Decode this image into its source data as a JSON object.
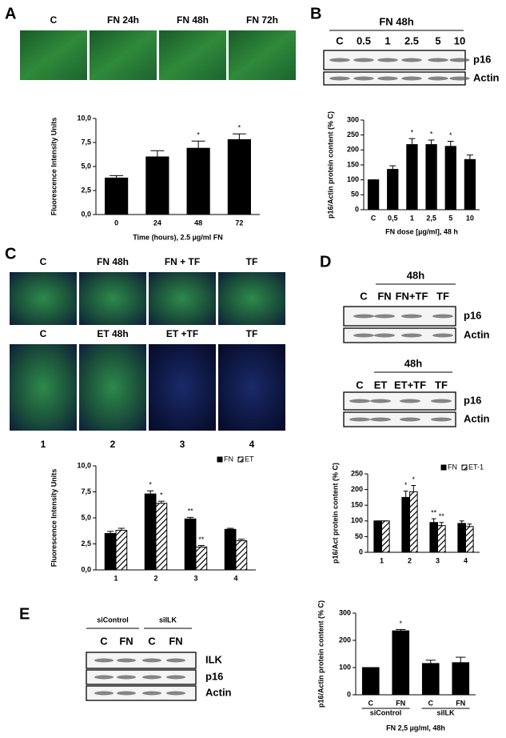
{
  "panel_labels": [
    "A",
    "B",
    "C",
    "D",
    "E"
  ],
  "images_a": [
    "C",
    "FN 24h",
    "FN 48h",
    "FN 72h"
  ],
  "blot_b": {
    "title": "FN 48h",
    "lanes": [
      "C",
      "0.5",
      "1",
      "2.5",
      "5",
      "10"
    ],
    "bands": [
      "p16",
      "Actin"
    ]
  },
  "images_c_top": [
    "C",
    "FN  48h",
    "FN + TF",
    "TF"
  ],
  "images_c_bottom": [
    "C",
    "ET 48h",
    "ET +TF",
    "TF"
  ],
  "images_c_numbers": [
    "1",
    "2",
    "3",
    "4"
  ],
  "blot_d_top": {
    "title": "48h",
    "lanes": [
      "C",
      "FN",
      "FN+TF",
      "TF"
    ],
    "bands": [
      "p16",
      "Actin"
    ]
  },
  "blot_d_bottom": {
    "title": "48h",
    "lanes": [
      "C",
      "ET",
      "ET+TF",
      "TF"
    ],
    "bands": [
      "p16",
      "Actin"
    ]
  },
  "blot_e": {
    "groups": [
      "siControl",
      "siILK"
    ],
    "lanes": [
      "C",
      "FN",
      "C",
      "FN"
    ],
    "bands": [
      "ILK",
      "p16",
      "Actin"
    ]
  },
  "chart_data": [
    {
      "type": "bar",
      "y_label": "Fluorescence Intensity Units",
      "x_label": "Time (hours), 2.5 µg/ml FN",
      "categories": [
        "0",
        "24",
        "48",
        "72"
      ],
      "values": [
        3.8,
        6.0,
        6.9,
        7.8
      ],
      "errors": [
        0.25,
        0.65,
        0.75,
        0.6
      ],
      "markers": [
        null,
        null,
        "*",
        "*"
      ],
      "color": "#000000",
      "ylim": [
        0,
        10
      ],
      "yticks": [
        {
          "value": 0,
          "label": "0,0"
        },
        {
          "value": 2.5,
          "label": "2,5"
        },
        {
          "value": 5,
          "label": "5,0"
        },
        {
          "value": 7.5,
          "label": "7,5"
        },
        {
          "value": 10,
          "label": "10,0"
        }
      ]
    },
    {
      "type": "bar",
      "y_label": "p16/Actin protein content (% C)",
      "x_label": "FN dose [µg/ml], 48 h",
      "categories": [
        "C",
        "0,5",
        "1",
        "2,5",
        "5",
        "10"
      ],
      "values": [
        100,
        135,
        218,
        218,
        212,
        168
      ],
      "errors": [
        0,
        12,
        20,
        15,
        17,
        15
      ],
      "markers": [
        null,
        null,
        "*",
        "*",
        "*",
        null
      ],
      "color": "#000000",
      "ylim": [
        0,
        300
      ],
      "yticks": [
        0,
        50,
        100,
        150,
        200,
        250,
        300
      ]
    },
    {
      "type": "bar",
      "y_label": "Fluorescence Intensity Units",
      "categories": [
        "1",
        "2",
        "3",
        "4"
      ],
      "series": [
        {
          "name": "FN",
          "color": "#000000",
          "hatch": false,
          "values": [
            3.5,
            7.3,
            4.9,
            3.9
          ],
          "errors": [
            0.2,
            0.3,
            0.15,
            0.1
          ],
          "markers": [
            null,
            "*",
            "**",
            null
          ]
        },
        {
          "name": "ET",
          "color": "#000000",
          "hatch": true,
          "values": [
            3.8,
            6.4,
            2.2,
            2.8
          ],
          "errors": [
            0.2,
            0.2,
            0.15,
            0.15
          ],
          "markers": [
            null,
            "*",
            "**",
            null
          ]
        }
      ],
      "ylim": [
        0,
        10
      ],
      "yticks": [
        {
          "value": 0,
          "label": "0,0"
        },
        {
          "value": 2.5,
          "label": "2,5"
        },
        {
          "value": 5,
          "label": "5,0"
        },
        {
          "value": 7.5,
          "label": "7,5"
        },
        {
          "value": 10,
          "label": "10,0"
        }
      ]
    },
    {
      "type": "bar",
      "y_label": "p16/Act protein content (% C)",
      "categories": [
        "1",
        "2",
        "3",
        "4"
      ],
      "series": [
        {
          "name": "FN",
          "color": "#000000",
          "hatch": false,
          "values": [
            100,
            175,
            95,
            92
          ],
          "errors": [
            0,
            20,
            12,
            8
          ],
          "markers": [
            null,
            "*",
            "**",
            null
          ]
        },
        {
          "name": "ET-1",
          "color": "#000000",
          "hatch": true,
          "values": [
            100,
            193,
            85,
            82
          ],
          "errors": [
            0,
            20,
            10,
            8
          ],
          "markers": [
            null,
            "*",
            "**",
            null
          ]
        }
      ],
      "ylim": [
        0,
        250
      ],
      "yticks": [
        0,
        50,
        100,
        150,
        200,
        250
      ]
    },
    {
      "type": "bar",
      "y_label": "p16/Actin protein content (% C)",
      "x_label": "FN 2,5 µg/ml, 48h",
      "categories": [
        "C",
        "FN",
        "C",
        "FN"
      ],
      "x_groups": [
        "siControl",
        "siILK"
      ],
      "values": [
        100,
        235,
        115,
        118
      ],
      "errors": [
        0,
        5,
        12,
        20
      ],
      "markers": [
        null,
        "*",
        null,
        null
      ],
      "color": "#000000",
      "ylim": [
        0,
        300
      ],
      "yticks": [
        0,
        100,
        200,
        300
      ]
    }
  ]
}
